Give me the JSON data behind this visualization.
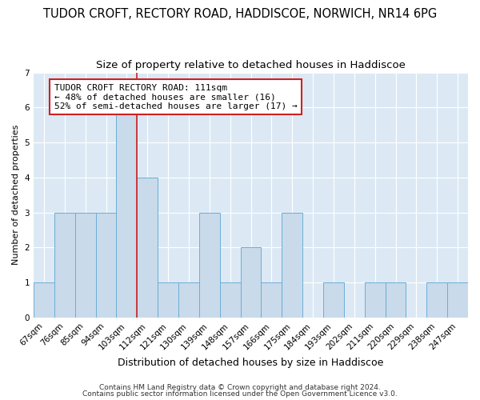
{
  "title": "TUDOR CROFT, RECTORY ROAD, HADDISCOE, NORWICH, NR14 6PG",
  "subtitle": "Size of property relative to detached houses in Haddiscoe",
  "xlabel": "Distribution of detached houses by size in Haddiscoe",
  "ylabel": "Number of detached properties",
  "categories": [
    "67sqm",
    "76sqm",
    "85sqm",
    "94sqm",
    "103sqm",
    "112sqm",
    "121sqm",
    "130sqm",
    "139sqm",
    "148sqm",
    "157sqm",
    "166sqm",
    "175sqm",
    "184sqm",
    "193sqm",
    "202sqm",
    "211sqm",
    "220sqm",
    "229sqm",
    "238sqm",
    "247sqm"
  ],
  "values": [
    1,
    3,
    3,
    3,
    6,
    4,
    1,
    1,
    3,
    1,
    2,
    1,
    3,
    0,
    1,
    0,
    1,
    1,
    0,
    1,
    1
  ],
  "bar_color": "#c9daea",
  "bar_edge_color": "#6baed6",
  "vline_pos": 5.0,
  "vline_color": "#cc2222",
  "ylim": [
    0,
    7
  ],
  "yticks": [
    0,
    1,
    2,
    3,
    4,
    5,
    6,
    7
  ],
  "annotation_text": "TUDOR CROFT RECTORY ROAD: 111sqm\n← 48% of detached houses are smaller (16)\n52% of semi-detached houses are larger (17) →",
  "annotation_box_facecolor": "#ffffff",
  "annotation_box_edgecolor": "#cc2222",
  "footer1": "Contains HM Land Registry data © Crown copyright and database right 2024.",
  "footer2": "Contains public sector information licensed under the Open Government Licence v3.0.",
  "plot_bg_color": "#dce9f5",
  "fig_bg_color": "#ffffff",
  "title_fontsize": 10.5,
  "subtitle_fontsize": 9.5,
  "xlabel_fontsize": 9,
  "ylabel_fontsize": 8,
  "tick_fontsize": 7.5,
  "annotation_fontsize": 8,
  "footer_fontsize": 6.5
}
